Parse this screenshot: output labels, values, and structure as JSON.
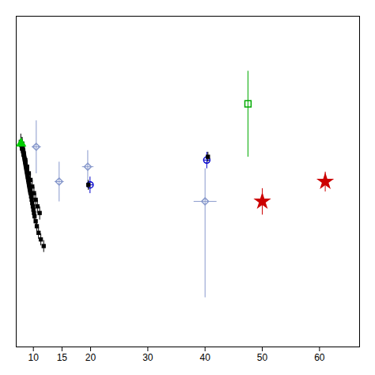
{
  "chart_data": {
    "type": "scatter",
    "xlim": [
      7.0,
      67.0
    ],
    "ylim": [
      0.0,
      1.0
    ],
    "xticks": [
      10,
      15,
      20,
      30,
      40,
      50,
      60
    ],
    "tick_labels": "x",
    "grid": false,
    "series": [
      {
        "color": "#000000",
        "marker": "square",
        "x": [
          7.8,
          7.9,
          8.0,
          8.05,
          8.1,
          8.15,
          8.2,
          8.25,
          8.3,
          8.35,
          8.4,
          8.45,
          8.5,
          8.55,
          8.6,
          8.65,
          8.7,
          8.75,
          8.8,
          8.85,
          8.9,
          8.95,
          9.0,
          9.05,
          9.1,
          9.15,
          9.2,
          9.25,
          9.3,
          9.35,
          9.4,
          9.45,
          9.5,
          9.6,
          9.7,
          9.8,
          9.9,
          10.0,
          10.1,
          10.2,
          10.4,
          10.6,
          10.9,
          11.3,
          11.8,
          8.05,
          8.3,
          8.6,
          8.9,
          9.2,
          9.5,
          9.8,
          10.1,
          10.4,
          10.7,
          11.1
        ],
        "values": [
          0.62,
          0.61,
          0.6,
          0.615,
          0.605,
          0.6,
          0.595,
          0.59,
          0.585,
          0.58,
          0.575,
          0.57,
          0.565,
          0.56,
          0.555,
          0.55,
          0.545,
          0.54,
          0.535,
          0.53,
          0.525,
          0.52,
          0.515,
          0.51,
          0.505,
          0.5,
          0.495,
          0.49,
          0.485,
          0.48,
          0.475,
          0.47,
          0.465,
          0.455,
          0.445,
          0.435,
          0.425,
          0.415,
          0.405,
          0.395,
          0.38,
          0.365,
          0.345,
          0.325,
          0.305,
          0.6,
          0.585,
          0.565,
          0.545,
          0.525,
          0.505,
          0.485,
          0.465,
          0.445,
          0.425,
          0.405
        ],
        "yerr": [
          0.025,
          0.025,
          0.025,
          0.02,
          0.02,
          0.02,
          0.02,
          0.02,
          0.02,
          0.02,
          0.02,
          0.02,
          0.02,
          0.02,
          0.02,
          0.02,
          0.02,
          0.02,
          0.02,
          0.02,
          0.02,
          0.02,
          0.02,
          0.02,
          0.02,
          0.02,
          0.02,
          0.02,
          0.02,
          0.02,
          0.02,
          0.02,
          0.02,
          0.018,
          0.018,
          0.018,
          0.018,
          0.018,
          0.018,
          0.018,
          0.018,
          0.018,
          0.018,
          0.018,
          0.018,
          0.02,
          0.02,
          0.02,
          0.02,
          0.02,
          0.02,
          0.02,
          0.02,
          0.02,
          0.02,
          0.02
        ],
        "xerr": [
          0.05,
          0.05,
          0.05,
          0.05,
          0.05,
          0.05,
          0.05,
          0.05,
          0.05,
          0.05,
          0.05,
          0.05,
          0.05,
          0.05,
          0.05,
          0.05,
          0.05,
          0.05,
          0.05,
          0.05,
          0.05,
          0.05,
          0.05,
          0.05,
          0.05,
          0.05,
          0.05,
          0.05,
          0.05,
          0.05,
          0.05,
          0.05,
          0.05,
          0.05,
          0.05,
          0.05,
          0.05,
          0.05,
          0.05,
          0.05,
          0.05,
          0.05,
          0.05,
          0.05,
          0.05,
          0.05,
          0.05,
          0.05,
          0.05,
          0.05,
          0.05,
          0.05,
          0.05,
          0.05,
          0.05,
          0.05
        ]
      },
      {
        "color": "#8899cc",
        "marker": "diamond-open",
        "x": [
          10.5,
          14.5,
          19.5,
          40.0
        ],
        "values": [
          0.605,
          0.5,
          0.545,
          0.44
        ],
        "yerr_lo": [
          0.08,
          0.06,
          0.05,
          0.29
        ],
        "yerr_hi": [
          0.08,
          0.06,
          0.05,
          0.1
        ],
        "xerr": [
          0.8,
          0.8,
          1.0,
          2.0
        ]
      },
      {
        "color": "#0000cc",
        "marker": "circle-open",
        "x": [
          19.9,
          40.3
        ],
        "values": [
          0.49,
          0.565
        ],
        "yerr": [
          0.025,
          0.025
        ],
        "xerr": [
          0.5,
          0.5
        ]
      },
      {
        "color": "#000000",
        "marker": "square",
        "x": [
          19.6,
          40.5
        ],
        "values": [
          0.49,
          0.575
        ],
        "yerr": [
          0.015,
          0.015
        ],
        "xerr": [
          0.2,
          0.2
        ]
      },
      {
        "color": "#00cc00",
        "marker": "triangle",
        "x": [
          7.85
        ],
        "values": [
          0.615
        ]
      },
      {
        "color": "#00aa00",
        "marker": "square-open",
        "x": [
          47.5
        ],
        "values": [
          0.735
        ],
        "yerr_lo": [
          0.16
        ],
        "yerr_hi": [
          0.1
        ]
      },
      {
        "color": "#cc0000",
        "marker": "star",
        "x": [
          50.0,
          61.0
        ],
        "values": [
          0.44,
          0.5
        ],
        "yerr": [
          0.04,
          0.03
        ]
      }
    ]
  }
}
